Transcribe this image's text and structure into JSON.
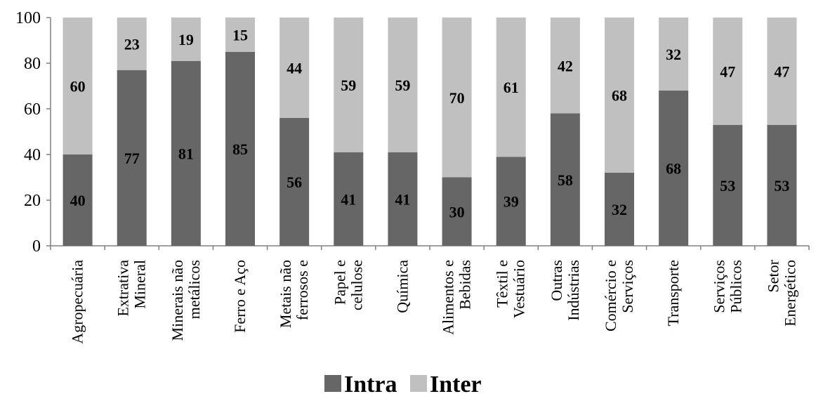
{
  "chart_data": {
    "type": "bar",
    "stacked": true,
    "title": "",
    "xlabel": "",
    "ylabel": "",
    "ylim": [
      0,
      100
    ],
    "yticks": [
      0,
      20,
      40,
      60,
      80,
      100
    ],
    "grid": false,
    "legend_position": "bottom-center",
    "categories": [
      [
        "Agropecuária"
      ],
      [
        "Extrativa",
        "Mineral"
      ],
      [
        "Minerais não",
        "metálicos"
      ],
      [
        "Ferro e Aço"
      ],
      [
        "Metais não",
        "ferrosos e"
      ],
      [
        "Papel e",
        "celulose"
      ],
      [
        "Química"
      ],
      [
        "Alimentos e",
        "Bebidas"
      ],
      [
        "Têxtil e",
        "Vestuário"
      ],
      [
        "Outras",
        "Indústrias"
      ],
      [
        "Comércio e",
        "Serviços"
      ],
      [
        "Transporte"
      ],
      [
        "Serviços",
        "Públicos"
      ],
      [
        "Setor",
        "Energético"
      ]
    ],
    "series": [
      {
        "name": "Intra",
        "color": "#666666",
        "values": [
          40,
          77,
          81,
          85,
          56,
          41,
          41,
          30,
          39,
          58,
          32,
          68,
          53,
          53
        ]
      },
      {
        "name": "Inter",
        "color": "#c0c0c0",
        "values": [
          60,
          23,
          19,
          15,
          44,
          59,
          59,
          70,
          61,
          42,
          68,
          32,
          47,
          47
        ]
      }
    ],
    "intra_label_y": [
      20,
      38.5,
      40.5,
      42.5,
      28,
      20.5,
      20.5,
      15,
      19.5,
      29,
      16,
      34,
      26.5,
      26.5
    ],
    "inter_label_y": [
      70,
      88.5,
      90.5,
      92.5,
      78,
      70.5,
      70.5,
      65,
      69.5,
      79,
      66,
      84,
      76.5,
      76.5
    ]
  }
}
